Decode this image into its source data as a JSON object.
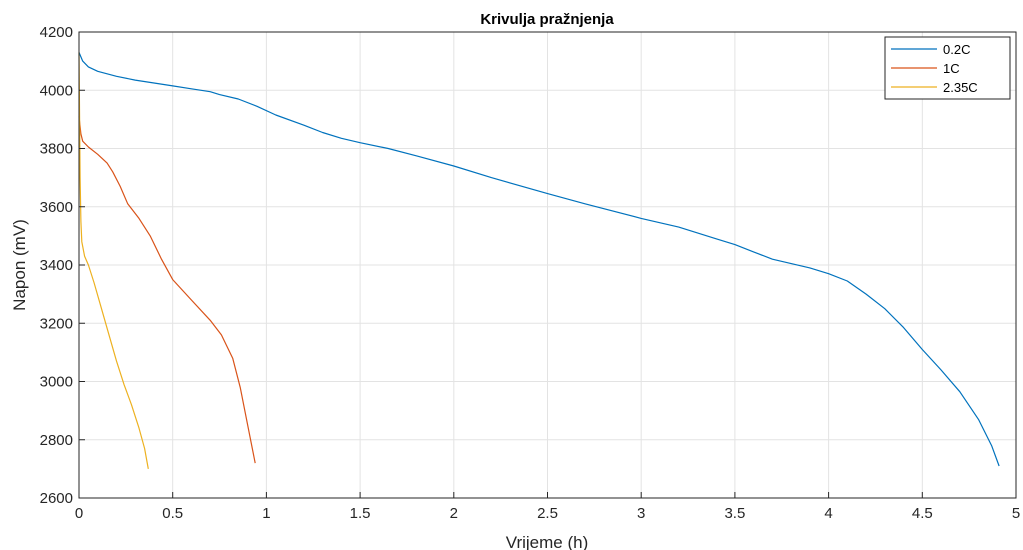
{
  "chart_data": {
    "type": "line",
    "title": "Krivulja pražnjenja",
    "xlabel": "Vrijeme (h)",
    "ylabel": "Napon (mV)",
    "xlim": [
      0,
      5
    ],
    "ylim": [
      2600,
      4200
    ],
    "xticks": [
      "0",
      "0.5",
      "1",
      "1.5",
      "2",
      "2.5",
      "3",
      "3.5",
      "4",
      "4.5",
      "5"
    ],
    "yticks": [
      "2600",
      "2800",
      "3000",
      "3200",
      "3400",
      "3600",
      "3800",
      "4000",
      "4200"
    ],
    "grid": true,
    "legend_position": "top-right",
    "series": [
      {
        "name": "0.2C",
        "color": "#0072BD",
        "points": [
          [
            0,
            4130
          ],
          [
            0.02,
            4100
          ],
          [
            0.05,
            4080
          ],
          [
            0.1,
            4065
          ],
          [
            0.2,
            4048
          ],
          [
            0.3,
            4035
          ],
          [
            0.4,
            4025
          ],
          [
            0.5,
            4015
          ],
          [
            0.6,
            4005
          ],
          [
            0.7,
            3995
          ],
          [
            0.75,
            3985
          ],
          [
            0.85,
            3970
          ],
          [
            0.95,
            3945
          ],
          [
            1.05,
            3915
          ],
          [
            1.2,
            3880
          ],
          [
            1.3,
            3855
          ],
          [
            1.4,
            3835
          ],
          [
            1.5,
            3820
          ],
          [
            1.65,
            3800
          ],
          [
            1.8,
            3775
          ],
          [
            2.0,
            3740
          ],
          [
            2.2,
            3700
          ],
          [
            2.5,
            3645
          ],
          [
            2.7,
            3610
          ],
          [
            3.0,
            3560
          ],
          [
            3.2,
            3530
          ],
          [
            3.4,
            3490
          ],
          [
            3.5,
            3470
          ],
          [
            3.6,
            3445
          ],
          [
            3.7,
            3420
          ],
          [
            3.9,
            3390
          ],
          [
            4.0,
            3370
          ],
          [
            4.1,
            3345
          ],
          [
            4.2,
            3300
          ],
          [
            4.3,
            3250
          ],
          [
            4.4,
            3185
          ],
          [
            4.5,
            3110
          ],
          [
            4.6,
            3040
          ],
          [
            4.7,
            2965
          ],
          [
            4.8,
            2870
          ],
          [
            4.87,
            2780
          ],
          [
            4.91,
            2710
          ]
        ]
      },
      {
        "name": "1C",
        "color": "#D95319",
        "points": [
          [
            0,
            3910
          ],
          [
            0.01,
            3850
          ],
          [
            0.02,
            3825
          ],
          [
            0.05,
            3805
          ],
          [
            0.1,
            3780
          ],
          [
            0.15,
            3750
          ],
          [
            0.18,
            3720
          ],
          [
            0.22,
            3670
          ],
          [
            0.26,
            3610
          ],
          [
            0.32,
            3560
          ],
          [
            0.38,
            3500
          ],
          [
            0.44,
            3420
          ],
          [
            0.5,
            3350
          ],
          [
            0.6,
            3280
          ],
          [
            0.7,
            3210
          ],
          [
            0.76,
            3160
          ],
          [
            0.82,
            3080
          ],
          [
            0.86,
            2980
          ],
          [
            0.9,
            2850
          ],
          [
            0.94,
            2720
          ]
        ]
      },
      {
        "name": "2.35C",
        "color": "#EDB120",
        "points": [
          [
            0,
            4130
          ],
          [
            0.003,
            3900
          ],
          [
            0.006,
            3700
          ],
          [
            0.01,
            3550
          ],
          [
            0.015,
            3480
          ],
          [
            0.03,
            3430
          ],
          [
            0.05,
            3400
          ],
          [
            0.08,
            3340
          ],
          [
            0.12,
            3250
          ],
          [
            0.16,
            3160
          ],
          [
            0.2,
            3070
          ],
          [
            0.24,
            2990
          ],
          [
            0.28,
            2920
          ],
          [
            0.32,
            2840
          ],
          [
            0.35,
            2770
          ],
          [
            0.37,
            2700
          ]
        ]
      }
    ]
  }
}
